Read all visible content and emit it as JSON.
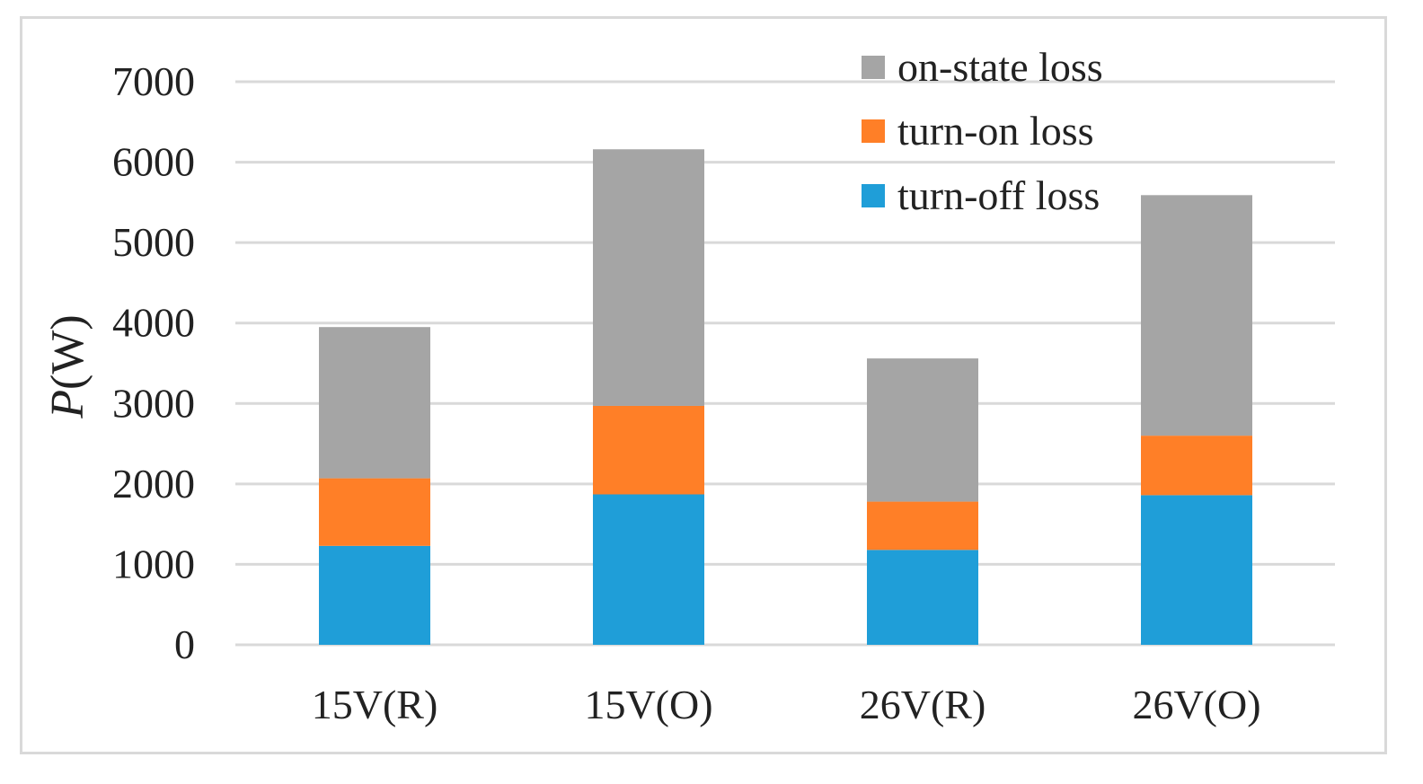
{
  "chart_data": {
    "type": "bar",
    "stacked": true,
    "title": "",
    "xlabel": "",
    "ylabel": "P(W)",
    "ylabel_italic_part": "P",
    "ylabel_rest": "(W)",
    "ylim": [
      0,
      7000
    ],
    "yticks": [
      0,
      1000,
      2000,
      3000,
      4000,
      5000,
      6000,
      7000
    ],
    "ytick_labels": [
      "0",
      "1000",
      "2000",
      "3000",
      "4000",
      "5000",
      "6000",
      "7000"
    ],
    "grid": true,
    "legend_position": "top-right",
    "categories": [
      "15V(R)",
      "15V(O)",
      "26V(R)",
      "26V(O)"
    ],
    "series": [
      {
        "name": "turn-off loss",
        "color": "#1f9ed8",
        "values": [
          1230,
          1870,
          1180,
          1860
        ]
      },
      {
        "name": "turn-on loss",
        "color": "#ff7f27",
        "values": [
          840,
          1100,
          600,
          740
        ]
      },
      {
        "name": "on-state loss",
        "color": "#a5a5a5",
        "values": [
          1880,
          3190,
          1780,
          2990
        ]
      }
    ],
    "legend_order": [
      "on-state loss",
      "turn-on loss",
      "turn-off loss"
    ]
  }
}
